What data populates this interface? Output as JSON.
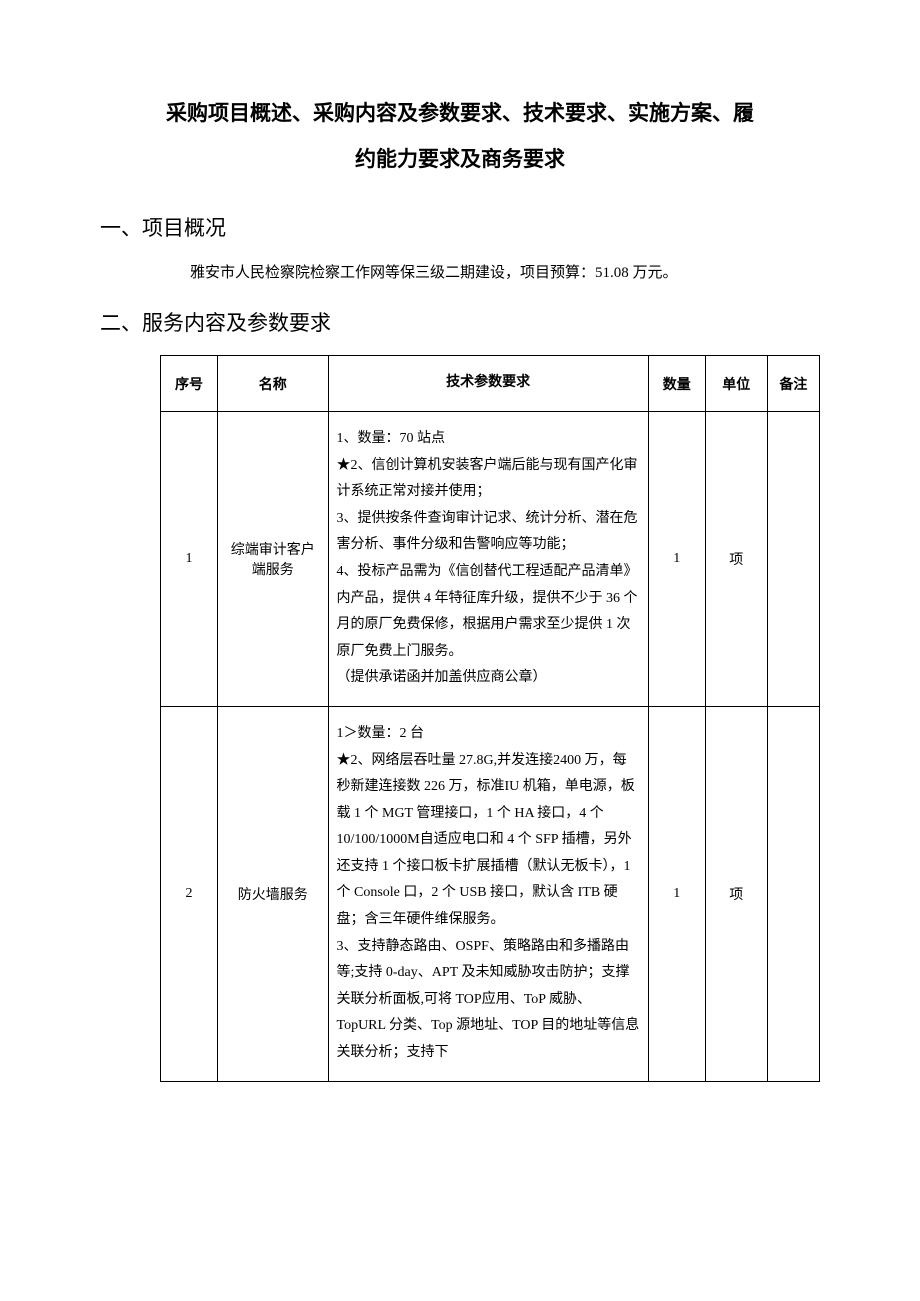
{
  "title_line1": "采购项目概述、采购内容及参数要求、技术要求、实施方案、履",
  "title_line2": "约能力要求及商务要求",
  "section1": {
    "heading": "一、项目概况",
    "body": "雅安市人民检察院检察工作网等保三级二期建设，项目预算：51.08 万元。"
  },
  "section2": {
    "heading": "二、服务内容及参数要求"
  },
  "table": {
    "headers": [
      "序号",
      "名称",
      "技术参数要求",
      "数量",
      "单位",
      "备注"
    ],
    "rows": [
      {
        "idx": "1",
        "name": "综端审计客户端服务",
        "spec": "1、数量：70 站点\n★2、信创计算机安装客户端后能与现有国产化审计系统正常对接并使用；\n3、提供按条件查询审计记求、统计分析、潜在危害分析、事件分级和告警响应等功能；\n4、投标产品需为《信创替代工程适配产品清单》内产品，提供 4 年特征库升级，提供不少于 36 个月的原厂免费保修，根据用户需求至少提供 1 次原厂免费上门服务。\n（提供承诺函并加盖供应商公章）",
        "qty": "1",
        "unit": "项",
        "note": ""
      },
      {
        "idx": "2",
        "name": "防火墙服务",
        "spec": "1＞数量：2 台\n★2、网络层吞吐量 27.8G,并发连接2400 万，每秒新建连接数 226 万，标准IU 机箱，单电源，板载 1 个 MGT 管理接口，1 个 HA 接口，4 个 10/100/1000M自适应电口和 4 个 SFP 插槽，另外还支持 1 个接口板卡扩展插槽（默认无板卡），1 个 Console 口，2 个 USB 接口，默认含 ITB 硬盘；含三年硬件维保服务。\n3、支持静态路由、OSPF、策略路由和多播路由等;支持 0-day、APT 及未知威胁攻击防护；支撑关联分析面板,可将 TOP应用、ToP 威胁、TopURL 分类、Top 源地址、TOP 目的地址等信息关联分析；支持下",
        "qty": "1",
        "unit": "项",
        "note": ""
      }
    ]
  },
  "colors": {
    "text": "#000000",
    "background": "#ffffff",
    "border": "#000000"
  }
}
